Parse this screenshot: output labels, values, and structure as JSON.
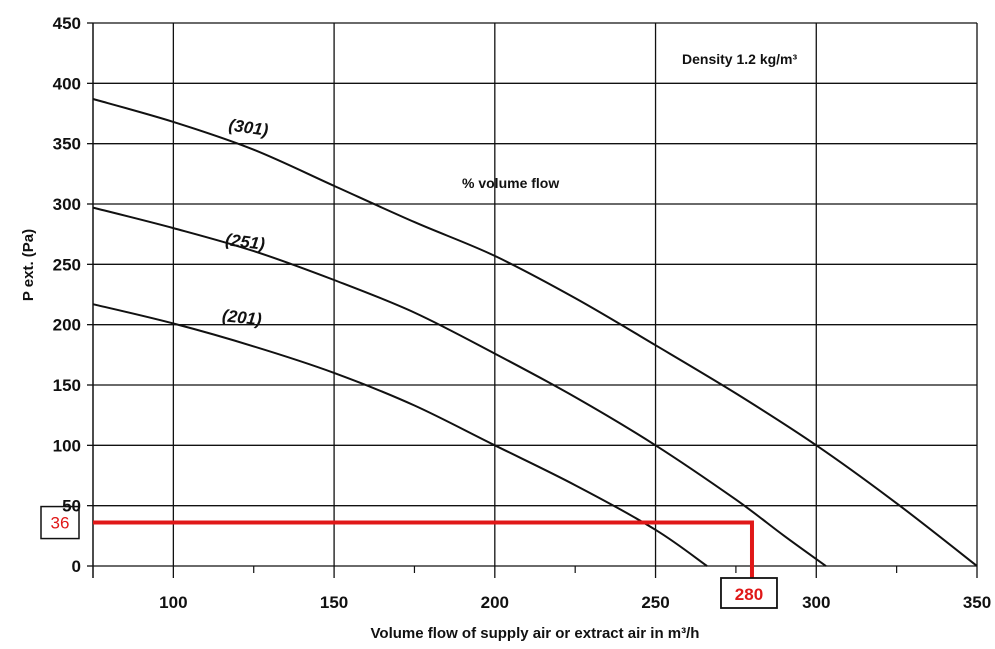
{
  "chart_data": {
    "type": "line",
    "title": "",
    "xlabel": "Volume flow of supply air or extract air in m³/h",
    "ylabel": "P ext. (Pa)",
    "xlim": [
      75,
      350
    ],
    "ylim": [
      0,
      450
    ],
    "x_ticks": [
      100,
      150,
      200,
      250,
      300,
      350
    ],
    "y_ticks": [
      0,
      50,
      100,
      150,
      200,
      250,
      300,
      350,
      400,
      450
    ],
    "x_grid": [
      100,
      150,
      200,
      250,
      300,
      350
    ],
    "grid": true,
    "group_label": "% volume flow",
    "density_note": "Density 1.2 kg/m³",
    "series": [
      {
        "name": "(301)",
        "x": [
          75,
          100,
          125,
          150,
          175,
          200,
          225,
          250,
          275,
          300,
          325,
          350
        ],
        "y": [
          387,
          368,
          345,
          315,
          285,
          257,
          222,
          183,
          143,
          100,
          52,
          0
        ]
      },
      {
        "name": "(251)",
        "x": [
          75,
          100,
          125,
          150,
          175,
          200,
          225,
          250,
          275,
          290,
          303
        ],
        "y": [
          297,
          280,
          261,
          237,
          210,
          176,
          140,
          100,
          55,
          25,
          0
        ]
      },
      {
        "name": "(201)",
        "x": [
          75,
          100,
          125,
          150,
          175,
          200,
          225,
          250,
          266
        ],
        "y": [
          217,
          201,
          182,
          160,
          133,
          100,
          67,
          30,
          0
        ]
      }
    ],
    "operating_point": {
      "x": 280,
      "y": 36,
      "x_label": "280",
      "y_label": "36",
      "color": "#e01818"
    },
    "colors": {
      "curves": "#111111",
      "grid": "#111111",
      "marker": "#e01818"
    }
  }
}
